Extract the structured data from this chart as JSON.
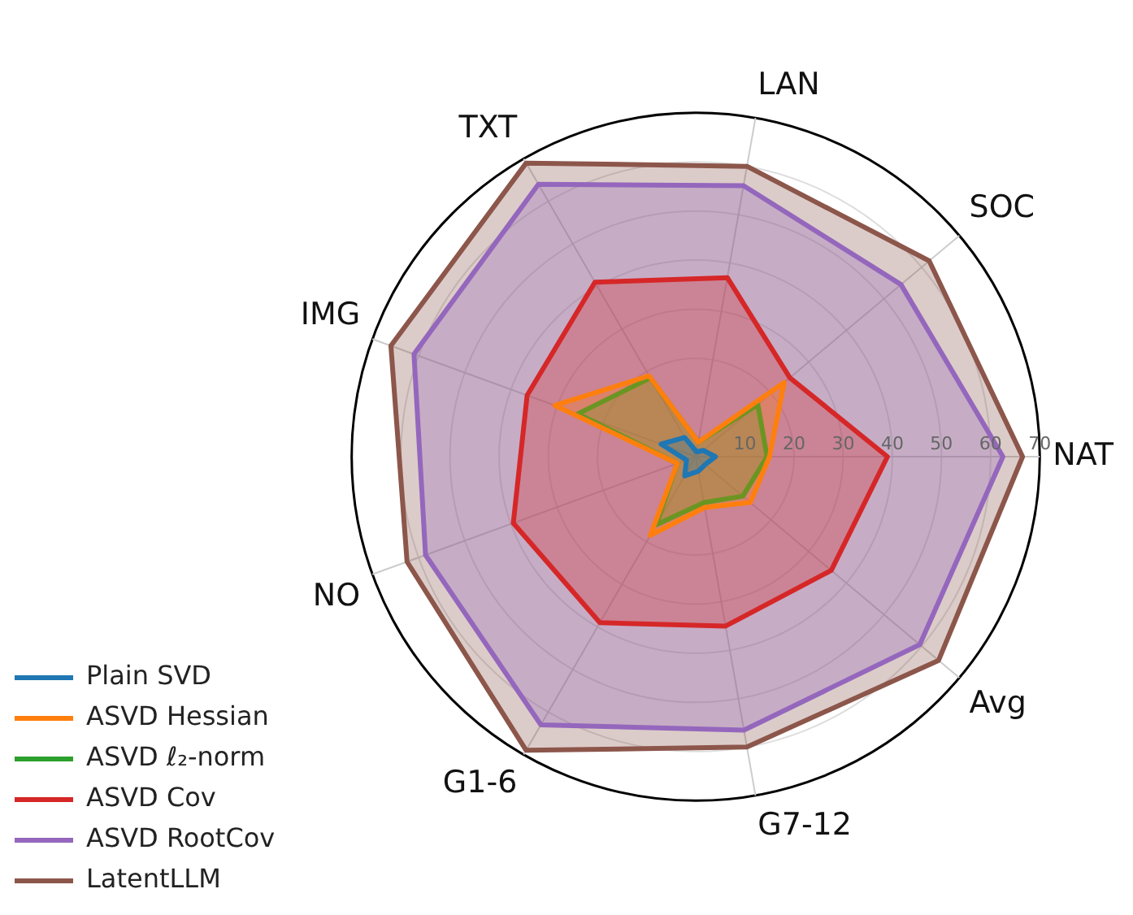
{
  "chart_data": {
    "type": "radar",
    "categories": [
      "LAN",
      "SOC",
      "NAT",
      "Avg",
      "G7-12",
      "G1-6",
      "NO",
      "IMG",
      "TXT"
    ],
    "ylim": [
      0,
      70
    ],
    "yticks": [
      10,
      20,
      30,
      40,
      50,
      60,
      70
    ],
    "grid": true,
    "legend": "bottom left",
    "series": [
      {
        "name": "Plain SVD",
        "color": "#1f77b4",
        "values": [
          1,
          2,
          4,
          2.5,
          3,
          4.5,
          2,
          7.5,
          4.5
        ]
      },
      {
        "name": "ASVD Hessian",
        "color": "#ff7f0e",
        "values": [
          3,
          23.5,
          15,
          14.5,
          10.5,
          18.5,
          4,
          30.5,
          19
        ]
      },
      {
        "name": "ASVD ℓ₂-norm",
        "color": "#2ca02c",
        "values": [
          3,
          16.5,
          14.5,
          12.5,
          9.5,
          16,
          4,
          25.5,
          18.5
        ]
      },
      {
        "name": "ASVD Cov",
        "color": "#d62728",
        "values": [
          37,
          25,
          39,
          36,
          35,
          39,
          39.5,
          36.5,
          41
        ]
      },
      {
        "name": "ASVD RootCov",
        "color": "#9467bd",
        "values": [
          56,
          54.5,
          62.5,
          59.5,
          56.5,
          63,
          58.5,
          61,
          64
        ]
      },
      {
        "name": "LatentLLM",
        "color": "#8c564b",
        "values": [
          60,
          62,
          66.5,
          64.5,
          60,
          69,
          62.5,
          66,
          69
        ]
      }
    ]
  }
}
